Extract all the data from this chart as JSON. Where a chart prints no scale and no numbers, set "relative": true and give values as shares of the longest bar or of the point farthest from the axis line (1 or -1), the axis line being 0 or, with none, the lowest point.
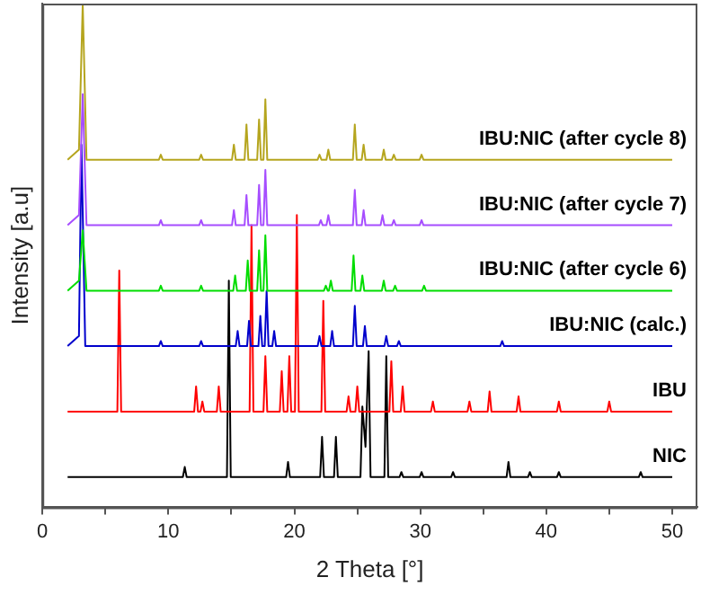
{
  "chart_data": {
    "type": "line",
    "xlabel": "2 Theta [°]",
    "ylabel": "Intensity [a.u]",
    "relative": true,
    "legend": false,
    "grid": false,
    "marker": "none",
    "xlim": [
      0,
      52
    ],
    "xticks": [
      0,
      {
        "value": 5,
        "label": null
      },
      10,
      {
        "value": 15,
        "label": null
      },
      20,
      {
        "value": 25,
        "label": null
      },
      30,
      {
        "value": 35,
        "label": null
      },
      40,
      {
        "value": 45,
        "label": null
      },
      50
    ],
    "series": [
      {
        "name": "IBU:NIC (after cycle 8)",
        "color": "#b5a51e",
        "x": [
          2,
          2.9,
          3.2,
          3.5,
          9.25,
          9.4,
          9.55,
          12.45,
          12.6,
          12.75,
          15.05,
          15.2,
          15.35,
          16.05,
          16.2,
          16.35,
          17.05,
          17.2,
          17.35,
          17.55,
          17.7,
          17.85,
          21.85,
          22,
          22.15,
          22.55,
          22.7,
          22.85,
          24.65,
          24.8,
          24.95,
          25.35,
          25.5,
          25.65,
          26.95,
          27.1,
          27.25,
          27.75,
          27.9,
          28.05,
          29.95,
          30.1,
          30.25,
          50
        ],
        "values": [
          0.69,
          0.71,
          1,
          0.69,
          0.69,
          0.7,
          0.69,
          0.69,
          0.7,
          0.69,
          0.69,
          0.72,
          0.69,
          0.69,
          0.76,
          0.69,
          0.69,
          0.77,
          0.69,
          0.69,
          0.81,
          0.69,
          0.69,
          0.7,
          0.69,
          0.69,
          0.71,
          0.69,
          0.69,
          0.76,
          0.69,
          0.69,
          0.72,
          0.69,
          0.69,
          0.71,
          0.69,
          0.69,
          0.7,
          0.69,
          0.69,
          0.7,
          0.69,
          0.69
        ]
      },
      {
        "name": "IBU:NIC (after cycle 7)",
        "color": "#a64dff",
        "x": [
          2,
          2.9,
          3.2,
          3.5,
          9.25,
          9.4,
          9.55,
          12.45,
          12.6,
          12.75,
          15.05,
          15.2,
          15.35,
          16.05,
          16.2,
          16.35,
          17.05,
          17.2,
          17.35,
          17.55,
          17.7,
          17.85,
          21.95,
          22.1,
          22.25,
          22.55,
          22.7,
          22.85,
          24.65,
          24.8,
          24.95,
          25.35,
          25.5,
          25.65,
          26.85,
          27,
          27.15,
          27.75,
          27.9,
          28.05,
          29.95,
          30.1,
          30.25,
          50
        ],
        "values": [
          0.56,
          0.58,
          0.82,
          0.56,
          0.56,
          0.57,
          0.56,
          0.56,
          0.57,
          0.56,
          0.56,
          0.59,
          0.56,
          0.56,
          0.62,
          0.56,
          0.56,
          0.64,
          0.56,
          0.56,
          0.67,
          0.56,
          0.56,
          0.57,
          0.56,
          0.56,
          0.58,
          0.56,
          0.56,
          0.63,
          0.56,
          0.56,
          0.59,
          0.56,
          0.56,
          0.58,
          0.56,
          0.56,
          0.57,
          0.56,
          0.56,
          0.57,
          0.56,
          0.56
        ]
      },
      {
        "name": "IBU:NIC (after cycle 6)",
        "color": "#00dd00",
        "x": [
          2,
          2.9,
          3.2,
          3.5,
          9.25,
          9.4,
          9.55,
          12.45,
          12.6,
          12.75,
          15.15,
          15.3,
          15.45,
          16.15,
          16.3,
          16.45,
          17.05,
          17.2,
          17.35,
          17.55,
          17.7,
          17.85,
          22.35,
          22.5,
          22.65,
          22.75,
          22.9,
          23.05,
          24.55,
          24.7,
          24.85,
          25.25,
          25.4,
          25.55,
          26.95,
          27.1,
          27.25,
          27.85,
          28,
          28.15,
          30.15,
          30.3,
          30.45,
          50
        ],
        "values": [
          0.43,
          0.45,
          0.55,
          0.43,
          0.43,
          0.44,
          0.43,
          0.43,
          0.44,
          0.43,
          0.43,
          0.46,
          0.43,
          0.43,
          0.49,
          0.43,
          0.43,
          0.51,
          0.43,
          0.43,
          0.54,
          0.43,
          0.43,
          0.44,
          0.43,
          0.43,
          0.45,
          0.43,
          0.43,
          0.5,
          0.43,
          0.43,
          0.46,
          0.43,
          0.43,
          0.45,
          0.43,
          0.43,
          0.44,
          0.43,
          0.43,
          0.44,
          0.43,
          0.43
        ]
      },
      {
        "name": "IBU:NIC (calc.)",
        "color": "#0000cc",
        "x": [
          2,
          2.9,
          3.1,
          3.4,
          9.25,
          9.4,
          9.55,
          12.45,
          12.6,
          12.75,
          15.35,
          15.5,
          15.65,
          16.25,
          16.4,
          16.55,
          17.15,
          17.3,
          17.45,
          17.65,
          17.8,
          17.95,
          18.25,
          18.4,
          18.55,
          21.85,
          22,
          22.15,
          22.85,
          23,
          23.15,
          24.65,
          24.8,
          24.95,
          25.45,
          25.6,
          25.75,
          27.15,
          27.3,
          27.45,
          28.15,
          28.3,
          28.45,
          36.35,
          36.5,
          36.65,
          50
        ],
        "values": [
          0.32,
          0.34,
          0.72,
          0.32,
          0.32,
          0.33,
          0.32,
          0.32,
          0.33,
          0.32,
          0.32,
          0.35,
          0.32,
          0.32,
          0.37,
          0.32,
          0.32,
          0.38,
          0.32,
          0.32,
          0.43,
          0.32,
          0.32,
          0.35,
          0.32,
          0.32,
          0.34,
          0.32,
          0.32,
          0.35,
          0.32,
          0.32,
          0.4,
          0.32,
          0.32,
          0.36,
          0.32,
          0.32,
          0.34,
          0.32,
          0.32,
          0.33,
          0.32,
          0.32,
          0.33,
          0.32,
          0.32
        ]
      },
      {
        "name": "IBU",
        "color": "#ff0000",
        "x": [
          2,
          5.95,
          6.1,
          6.25,
          12.05,
          12.2,
          12.35,
          12.55,
          12.7,
          12.85,
          13.85,
          14,
          14.15,
          16.45,
          16.6,
          16.75,
          17.55,
          17.7,
          17.85,
          18.85,
          19,
          19.15,
          19.45,
          19.6,
          19.75,
          20.05,
          20.2,
          20.35,
          22.15,
          22.3,
          22.45,
          24.15,
          24.3,
          24.45,
          24.85,
          25,
          25.15,
          27.55,
          27.7,
          27.85,
          28.45,
          28.6,
          28.75,
          30.85,
          31,
          31.15,
          33.75,
          33.9,
          34.05,
          35.35,
          35.5,
          35.65,
          37.65,
          37.8,
          37.95,
          40.85,
          41,
          41.15,
          44.85,
          45,
          45.15,
          50
        ],
        "values": [
          0.19,
          0.19,
          0.47,
          0.19,
          0.19,
          0.24,
          0.19,
          0.19,
          0.21,
          0.19,
          0.19,
          0.24,
          0.19,
          0.19,
          0.56,
          0.19,
          0.19,
          0.3,
          0.19,
          0.19,
          0.27,
          0.19,
          0.19,
          0.3,
          0.19,
          0.19,
          0.58,
          0.19,
          0.19,
          0.41,
          0.19,
          0.19,
          0.22,
          0.19,
          0.19,
          0.24,
          0.19,
          0.19,
          0.29,
          0.19,
          0.19,
          0.24,
          0.19,
          0.19,
          0.21,
          0.19,
          0.19,
          0.21,
          0.19,
          0.19,
          0.23,
          0.19,
          0.19,
          0.22,
          0.19,
          0.19,
          0.21,
          0.19,
          0.19,
          0.21,
          0.19,
          0.19
        ]
      },
      {
        "name": "NIC",
        "color": "#000000",
        "x": [
          2,
          11.15,
          11.3,
          11.45,
          14.65,
          14.8,
          14.95,
          19.35,
          19.5,
          19.65,
          22.05,
          22.2,
          22.35,
          23.15,
          23.3,
          23.45,
          25.25,
          25.4,
          25.65,
          25.9,
          26.05,
          27.15,
          27.3,
          27.45,
          28.35,
          28.5,
          28.65,
          29.95,
          30.1,
          30.25,
          32.45,
          32.6,
          32.75,
          36.85,
          37,
          37.15,
          38.55,
          38.7,
          38.85,
          40.85,
          41,
          41.15,
          47.35,
          47.5,
          47.65,
          50
        ],
        "values": [
          0.06,
          0.06,
          0.08,
          0.06,
          0.06,
          0.45,
          0.06,
          0.06,
          0.09,
          0.06,
          0.06,
          0.14,
          0.06,
          0.06,
          0.14,
          0.06,
          0.06,
          0.2,
          0.12,
          0.31,
          0.06,
          0.06,
          0.3,
          0.06,
          0.06,
          0.07,
          0.06,
          0.06,
          0.07,
          0.06,
          0.06,
          0.07,
          0.06,
          0.06,
          0.09,
          0.06,
          0.06,
          0.07,
          0.06,
          0.06,
          0.07,
          0.06,
          0.06,
          0.07,
          0.06,
          0.06
        ]
      }
    ]
  }
}
